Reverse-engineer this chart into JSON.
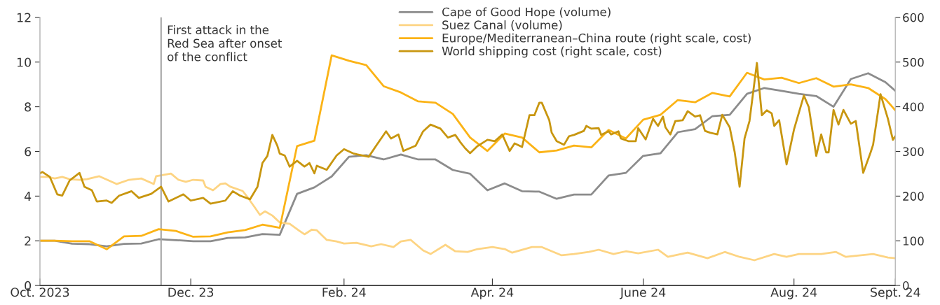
{
  "chart_data": {
    "type": "line",
    "xlim": [
      "2023-10-01",
      "2024-09-11"
    ],
    "xticks": [
      {
        "value": "2023-10-01",
        "label": "Oct. 2023"
      },
      {
        "value": "2023-12-01",
        "label": "Dec. 23"
      },
      {
        "value": "2024-02-01",
        "label": "Feb. 24"
      },
      {
        "value": "2024-04-01",
        "label": "Apr. 24"
      },
      {
        "value": "2024-06-01",
        "label": "June 24"
      },
      {
        "value": "2024-08-01",
        "label": "Aug. 24"
      },
      {
        "value": "2024-09-11",
        "label": "Sept. 24"
      }
    ],
    "ylim": [
      0,
      12
    ],
    "yticks": [
      0,
      2,
      4,
      6,
      8,
      10,
      12
    ],
    "y2lim": [
      0,
      600
    ],
    "y2ticks": [
      0,
      100,
      200,
      300,
      400,
      500,
      600
    ],
    "legend": "top",
    "grid": false,
    "ref_lines": [
      {
        "axis": "x",
        "value": "2023-11-19",
        "label": "First attack in the\nRed Sea after onset\nof the conflict",
        "color": "#a6a6a6"
      }
    ],
    "series": [
      {
        "name": "Cape of Good Hope (volume)",
        "color": "#8c8c8c",
        "x": [
          "2023-10-01",
          "2023-10-07",
          "2023-10-14",
          "2023-10-21",
          "2023-10-28",
          "2023-11-04",
          "2023-11-11",
          "2023-11-18",
          "2023-11-25",
          "2023-12-02",
          "2023-12-09",
          "2023-12-16",
          "2023-12-23",
          "2023-12-30",
          "2024-01-06",
          "2024-01-13",
          "2024-01-20",
          "2024-01-27",
          "2024-02-03",
          "2024-02-10",
          "2024-02-17",
          "2024-02-24",
          "2024-03-02",
          "2024-03-09",
          "2024-03-16",
          "2024-03-23",
          "2024-03-30",
          "2024-04-06",
          "2024-04-13",
          "2024-04-20",
          "2024-04-27",
          "2024-05-04",
          "2024-05-11",
          "2024-05-18",
          "2024-05-25",
          "2024-06-01",
          "2024-06-08",
          "2024-06-15",
          "2024-06-22",
          "2024-06-29",
          "2024-07-06",
          "2024-07-13",
          "2024-07-20",
          "2024-07-27",
          "2024-08-03",
          "2024-08-10",
          "2024-08-17",
          "2024-08-24",
          "2024-08-31",
          "2024-09-07",
          "2024-09-11"
        ],
        "values": [
          2.0,
          2.0,
          1.87,
          1.85,
          1.75,
          1.86,
          1.88,
          2.07,
          2.03,
          1.98,
          1.98,
          2.13,
          2.15,
          2.3,
          2.27,
          4.1,
          4.39,
          4.88,
          5.76,
          5.83,
          5.64,
          5.86,
          5.64,
          5.64,
          5.17,
          5.0,
          4.26,
          4.57,
          4.22,
          4.2,
          3.88,
          4.07,
          4.07,
          4.92,
          5.04,
          5.8,
          5.92,
          6.86,
          7.0,
          7.58,
          7.64,
          8.58,
          8.84,
          8.71,
          8.58,
          8.48,
          8.0,
          9.24,
          9.5,
          9.1,
          8.71
        ]
      },
      {
        "name": "Suez Canal (volume)",
        "color": "#fdd483",
        "x": [
          "2023-10-01",
          "2023-10-04",
          "2023-10-07",
          "2023-10-10",
          "2023-10-13",
          "2023-10-17",
          "2023-10-20",
          "2023-10-25",
          "2023-11-01",
          "2023-11-06",
          "2023-11-11",
          "2023-11-16",
          "2023-11-17",
          "2023-11-23",
          "2023-11-26",
          "2023-11-29",
          "2023-12-02",
          "2023-12-06",
          "2023-12-07",
          "2023-12-10",
          "2023-12-13",
          "2023-12-15",
          "2023-12-17",
          "2023-12-22",
          "2023-12-24",
          "2023-12-27",
          "2023-12-29",
          "2023-12-31",
          "2024-01-03",
          "2024-01-06",
          "2024-01-10",
          "2024-01-14",
          "2024-01-16",
          "2024-01-19",
          "2024-01-21",
          "2024-01-25",
          "2024-01-29",
          "2024-02-01",
          "2024-02-06",
          "2024-02-12",
          "2024-02-16",
          "2024-02-21",
          "2024-02-24",
          "2024-02-28",
          "2024-03-04",
          "2024-03-07",
          "2024-03-13",
          "2024-03-17",
          "2024-03-22",
          "2024-03-26",
          "2024-04-01",
          "2024-04-06",
          "2024-04-09",
          "2024-04-17",
          "2024-04-21",
          "2024-04-29",
          "2024-05-04",
          "2024-05-10",
          "2024-05-14",
          "2024-05-20",
          "2024-05-25",
          "2024-05-30",
          "2024-06-07",
          "2024-06-11",
          "2024-06-19",
          "2024-06-27",
          "2024-07-04",
          "2024-07-10",
          "2024-07-16",
          "2024-07-24",
          "2024-07-29",
          "2024-08-03",
          "2024-08-12",
          "2024-08-18",
          "2024-08-22",
          "2024-09-02",
          "2024-09-08",
          "2024-09-11"
        ],
        "values": [
          4.86,
          4.86,
          4.79,
          4.86,
          4.76,
          4.73,
          4.76,
          4.89,
          4.54,
          4.73,
          4.79,
          4.54,
          4.89,
          5.01,
          4.73,
          4.64,
          4.73,
          4.7,
          4.42,
          4.26,
          4.54,
          4.57,
          4.42,
          4.23,
          3.95,
          3.48,
          3.16,
          3.32,
          3.13,
          2.82,
          2.76,
          2.44,
          2.29,
          2.5,
          2.47,
          2.04,
          1.97,
          1.88,
          1.91,
          1.75,
          1.85,
          1.72,
          1.97,
          2.04,
          1.57,
          1.41,
          1.82,
          1.53,
          1.5,
          1.63,
          1.72,
          1.63,
          1.47,
          1.72,
          1.72,
          1.35,
          1.41,
          1.5,
          1.6,
          1.41,
          1.53,
          1.44,
          1.6,
          1.28,
          1.47,
          1.22,
          1.5,
          1.28,
          1.13,
          1.41,
          1.28,
          1.41,
          1.41,
          1.5,
          1.28,
          1.41,
          1.25,
          1.22
        ]
      },
      {
        "name": "Europe/Mediterranean–China route (right scale, cost)",
        "color": "#fbb316",
        "axis": "y2",
        "x": [
          "2023-10-01",
          "2023-10-07",
          "2023-10-14",
          "2023-10-21",
          "2023-10-28",
          "2023-11-04",
          "2023-11-11",
          "2023-11-18",
          "2023-11-25",
          "2023-12-02",
          "2023-12-09",
          "2023-12-16",
          "2023-12-23",
          "2023-12-30",
          "2024-01-06",
          "2024-01-13",
          "2024-01-20",
          "2024-01-27",
          "2024-02-03",
          "2024-02-10",
          "2024-02-17",
          "2024-02-24",
          "2024-03-02",
          "2024-03-09",
          "2024-03-16",
          "2024-03-23",
          "2024-03-30",
          "2024-04-06",
          "2024-04-13",
          "2024-04-20",
          "2024-04-27",
          "2024-05-04",
          "2024-05-11",
          "2024-05-18",
          "2024-05-25",
          "2024-06-01",
          "2024-06-08",
          "2024-06-15",
          "2024-06-22",
          "2024-06-29",
          "2024-07-06",
          "2024-07-13",
          "2024-07-20",
          "2024-07-27",
          "2024-08-03",
          "2024-08-10",
          "2024-08-17",
          "2024-08-24",
          "2024-08-31",
          "2024-09-07",
          "2024-09-11"
        ],
        "values": [
          100,
          100,
          99,
          99,
          81,
          110,
          111,
          126,
          122,
          109,
          110,
          119,
          124,
          136,
          129,
          312,
          324,
          515,
          503,
          493,
          446,
          432,
          412,
          409,
          384,
          331,
          301,
          340,
          331,
          298,
          302,
          313,
          309,
          348,
          329,
          371,
          382,
          415,
          410,
          431,
          423,
          476,
          461,
          465,
          453,
          464,
          445,
          450,
          442,
          417,
          392
        ]
      },
      {
        "name": "World shipping cost (right scale, cost)",
        "color": "#c8960f",
        "axis": "y2",
        "x": [
          "2023-10-01",
          "2023-10-02",
          "2023-10-05",
          "2023-10-08",
          "2023-10-10",
          "2023-10-13",
          "2023-10-17",
          "2023-10-19",
          "2023-10-22",
          "2023-10-24",
          "2023-10-28",
          "2023-10-30",
          "2023-11-02",
          "2023-11-07",
          "2023-11-10",
          "2023-11-15",
          "2023-11-19",
          "2023-11-22",
          "2023-11-28",
          "2023-12-01",
          "2023-12-06",
          "2023-12-09",
          "2023-12-15",
          "2023-12-18",
          "2023-12-21",
          "2023-12-25",
          "2023-12-28",
          "2023-12-30",
          "2024-01-01",
          "2024-01-03",
          "2024-01-05",
          "2024-01-06",
          "2024-01-08",
          "2024-01-10",
          "2024-01-13",
          "2024-01-16",
          "2024-01-18",
          "2024-01-20",
          "2024-01-21",
          "2024-01-25",
          "2024-01-29",
          "2024-02-01",
          "2024-02-05",
          "2024-02-11",
          "2024-02-14",
          "2024-02-18",
          "2024-02-20",
          "2024-02-23",
          "2024-02-25",
          "2024-03-01",
          "2024-03-04",
          "2024-03-07",
          "2024-03-11",
          "2024-03-14",
          "2024-03-17",
          "2024-03-19",
          "2024-03-21",
          "2024-03-23",
          "2024-03-26",
          "2024-03-30",
          "2024-04-02",
          "2024-04-05",
          "2024-04-08",
          "2024-04-10",
          "2024-04-13",
          "2024-04-16",
          "2024-04-18",
          "2024-04-20",
          "2024-04-21",
          "2024-04-24",
          "2024-04-25",
          "2024-04-27",
          "2024-04-30",
          "2024-05-02",
          "2024-05-04",
          "2024-05-08",
          "2024-05-09",
          "2024-05-11",
          "2024-05-14",
          "2024-05-15",
          "2024-05-18",
          "2024-05-19",
          "2024-05-22",
          "2024-05-23",
          "2024-05-26",
          "2024-05-29",
          "2024-05-30",
          "2024-06-02",
          "2024-06-05",
          "2024-06-07",
          "2024-06-09",
          "2024-06-10",
          "2024-06-12",
          "2024-06-14",
          "2024-06-17",
          "2024-06-19",
          "2024-06-22",
          "2024-06-24",
          "2024-06-26",
          "2024-06-28",
          "2024-07-01",
          "2024-07-03",
          "2024-07-06",
          "2024-07-08",
          "2024-07-10",
          "2024-07-12",
          "2024-07-14",
          "2024-07-17",
          "2024-07-19",
          "2024-07-21",
          "2024-07-23",
          "2024-07-24",
          "2024-07-26",
          "2024-07-29",
          "2024-08-01",
          "2024-08-05",
          "2024-08-07",
          "2024-08-10",
          "2024-08-12",
          "2024-08-14",
          "2024-08-15",
          "2024-08-17",
          "2024-08-19",
          "2024-08-21",
          "2024-08-24",
          "2024-08-26",
          "2024-08-29",
          "2024-09-01",
          "2024-09-02",
          "2024-09-05",
          "2024-09-08",
          "2024-09-10",
          "2024-09-11"
        ],
        "values": [
          251,
          254,
          243,
          204,
          201,
          235,
          252,
          221,
          213,
          188,
          190,
          185,
          201,
          211,
          196,
          205,
          221,
          188,
          204,
          190,
          196,
          183,
          190,
          211,
          201,
          193,
          221,
          274,
          290,
          337,
          313,
          295,
          291,
          266,
          279,
          266,
          274,
          251,
          268,
          259,
          291,
          305,
          295,
          288,
          313,
          345,
          329,
          338,
          301,
          313,
          345,
          360,
          351,
          331,
          337,
          321,
          307,
          296,
          312,
          326,
          323,
          338,
          301,
          318,
          310,
          381,
          381,
          409,
          409,
          370,
          342,
          323,
          315,
          334,
          337,
          346,
          357,
          351,
          352,
          337,
          345,
          338,
          345,
          329,
          323,
          323,
          352,
          327,
          373,
          357,
          378,
          354,
          338,
          368,
          370,
          390,
          378,
          381,
          346,
          342,
          338,
          382,
          354,
          299,
          221,
          329,
          368,
          498,
          381,
          392,
          385,
          357,
          370,
          271,
          349,
          425,
          399,
          290,
          338,
          298,
          298,
          393,
          360,
          393,
          362,
          368,
          252,
          298,
          315,
          428,
          373,
          326,
          334
        ]
      }
    ]
  }
}
